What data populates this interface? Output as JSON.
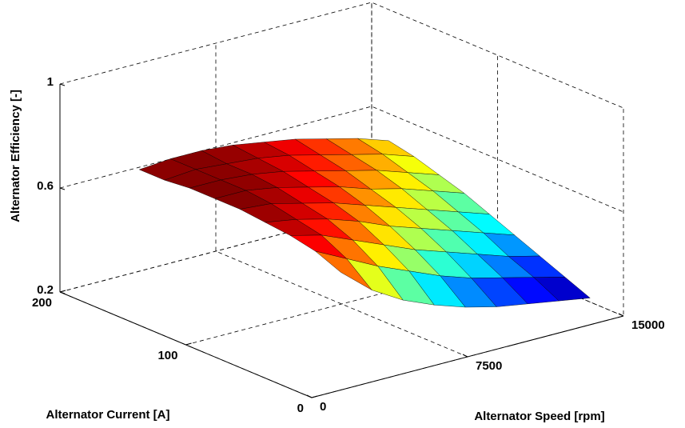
{
  "chart_data": {
    "type": "surface",
    "xlabel": "Alternator Speed [rpm]",
    "ylabel": "Alternator Current [A]",
    "zlabel": "Alternator Efficiency [-]",
    "x": [
      2000,
      3500,
      5000,
      6500,
      8000,
      9500,
      11000,
      12500,
      14000
    ],
    "y": [
      10,
      30,
      50,
      70,
      90,
      110,
      130,
      150,
      170
    ],
    "z": [
      [
        0.62,
        0.52,
        0.45,
        0.4,
        0.36,
        0.33,
        0.31,
        0.29,
        0.27
      ],
      [
        0.66,
        0.6,
        0.54,
        0.49,
        0.44,
        0.4,
        0.37,
        0.34,
        0.31
      ],
      [
        0.68,
        0.65,
        0.6,
        0.55,
        0.5,
        0.46,
        0.42,
        0.38,
        0.35
      ],
      [
        0.69,
        0.67,
        0.64,
        0.6,
        0.55,
        0.51,
        0.47,
        0.43,
        0.39
      ],
      [
        0.7,
        0.69,
        0.66,
        0.63,
        0.59,
        0.55,
        0.51,
        0.47,
        0.43
      ],
      [
        0.7,
        0.7,
        0.68,
        0.65,
        0.62,
        0.58,
        0.55,
        0.51,
        0.47
      ],
      [
        0.7,
        0.7,
        0.69,
        0.67,
        0.64,
        0.61,
        0.58,
        0.54,
        0.5
      ],
      [
        0.69,
        0.7,
        0.69,
        0.68,
        0.66,
        0.63,
        0.6,
        0.57,
        0.53
      ],
      [
        0.69,
        0.7,
        0.7,
        0.69,
        0.67,
        0.65,
        0.62,
        0.59,
        0.55
      ]
    ],
    "xlim": [
      0,
      15000
    ],
    "xticks": [
      0,
      7500,
      15000
    ],
    "ylim": [
      0,
      200
    ],
    "yticks": [
      0,
      100,
      200
    ],
    "zlim": [
      0.2,
      1
    ],
    "zticks": [
      0.2,
      0.6,
      1
    ],
    "colormap": "jet",
    "grid": true
  }
}
